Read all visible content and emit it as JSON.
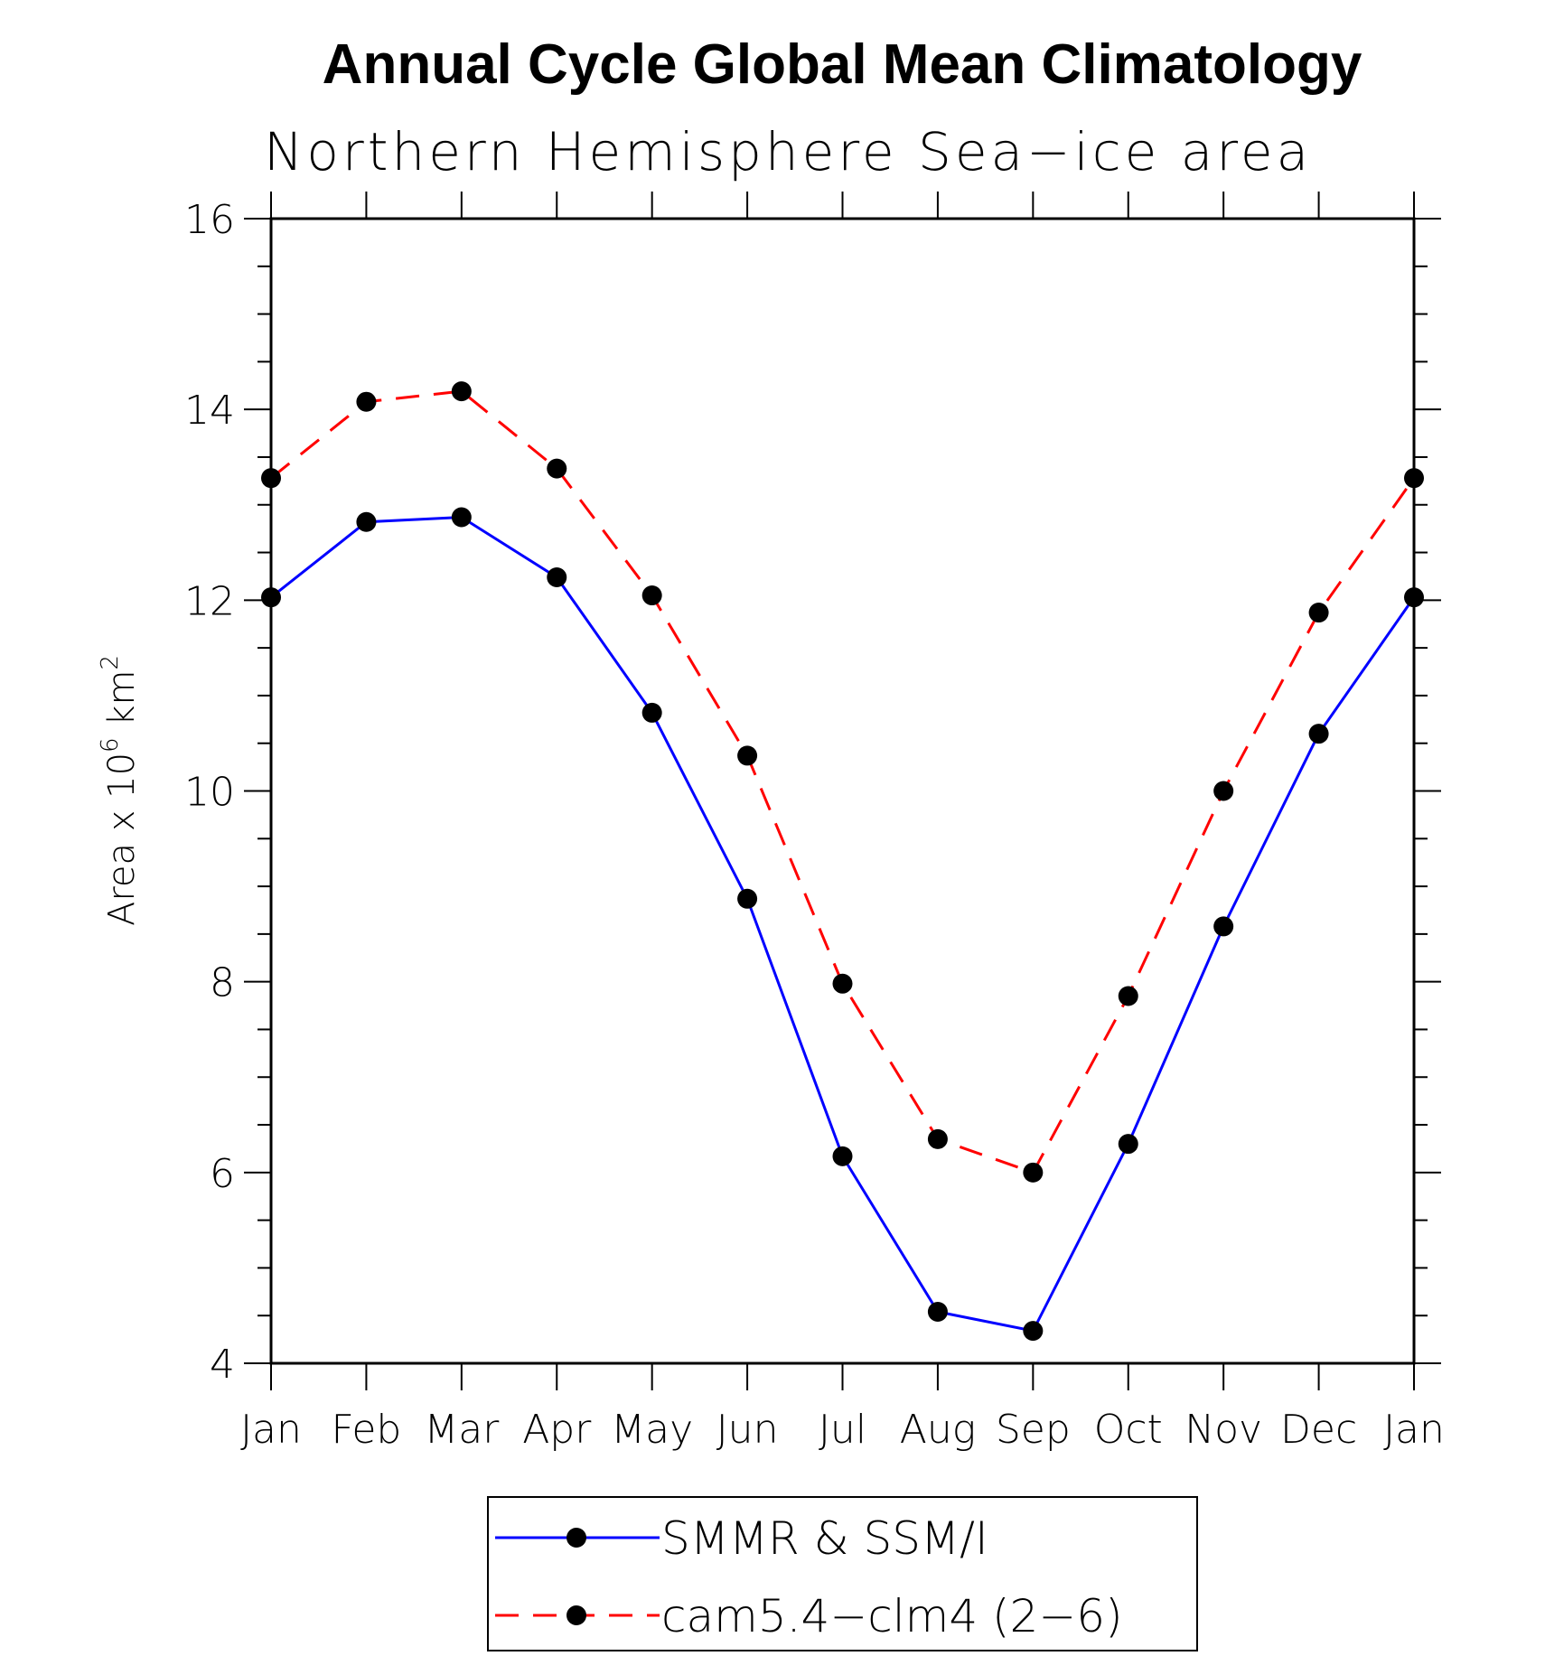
{
  "chart_data": {
    "type": "line",
    "title": "Annual Cycle Global Mean Climatology",
    "subtitle": "Northern Hemisphere Sea−ice area",
    "ylabel_prefix": "Area x 10",
    "ylabel_exp1": "6",
    "ylabel_mid": " km",
    "ylabel_exp2": "2",
    "categories": [
      "Jan",
      "Feb",
      "Mar",
      "Apr",
      "May",
      "Jun",
      "Jul",
      "Aug",
      "Sep",
      "Oct",
      "Nov",
      "Dec",
      "Jan"
    ],
    "ylim": [
      4,
      16
    ],
    "yticks": [
      4,
      6,
      8,
      10,
      12,
      14,
      16
    ],
    "y_minor_step": 0.5,
    "grid": false,
    "legend_position": "bottom",
    "series": [
      {
        "name": "SMMR & SSM/I",
        "color": "#0000ff",
        "dash": "solid",
        "marker": "filled-circle",
        "values": [
          12.03,
          12.82,
          12.87,
          12.24,
          10.82,
          8.87,
          6.17,
          4.54,
          4.34,
          6.3,
          8.58,
          10.6,
          12.03
        ]
      },
      {
        "name": "cam5.4−clm4 (2−6)",
        "color": "#ff0000",
        "dash": "dashed",
        "marker": "filled-circle",
        "values": [
          13.28,
          14.08,
          14.19,
          13.38,
          12.05,
          10.37,
          7.98,
          6.35,
          6.0,
          7.85,
          10.0,
          11.87,
          13.28
        ]
      }
    ]
  }
}
